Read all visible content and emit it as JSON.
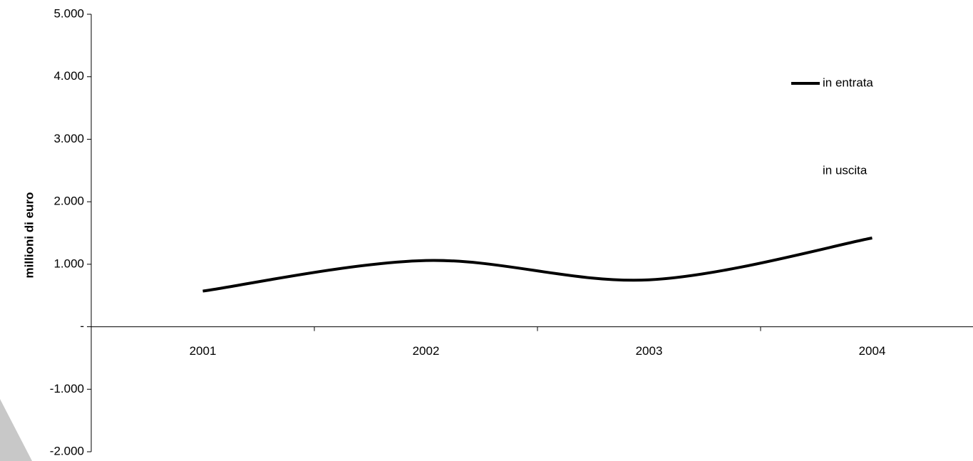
{
  "chart_data": {
    "type": "line",
    "y_label": "millioni di euro",
    "categories": [
      "2001",
      "2002",
      "2003",
      "2004"
    ],
    "series": [
      {
        "name": "in entrata",
        "color": "#000000",
        "values": [
          570,
          1060,
          750,
          1420
        ]
      },
      {
        "name": "in uscita",
        "color": "#ffffff",
        "values": [
          null,
          null,
          null,
          null
        ]
      }
    ],
    "ylim": [
      -2000,
      5000
    ],
    "yticks": [
      {
        "value": 5000,
        "label": "5.000"
      },
      {
        "value": 4000,
        "label": "4.000"
      },
      {
        "value": 3000,
        "label": "3.000"
      },
      {
        "value": 2000,
        "label": "2.000"
      },
      {
        "value": 1000,
        "label": "1.000"
      },
      {
        "value": 0,
        "label": "-"
      },
      {
        "value": -1000,
        "label": "-1.000"
      },
      {
        "value": -2000,
        "label": "-2.000"
      }
    ],
    "legend": "right"
  }
}
